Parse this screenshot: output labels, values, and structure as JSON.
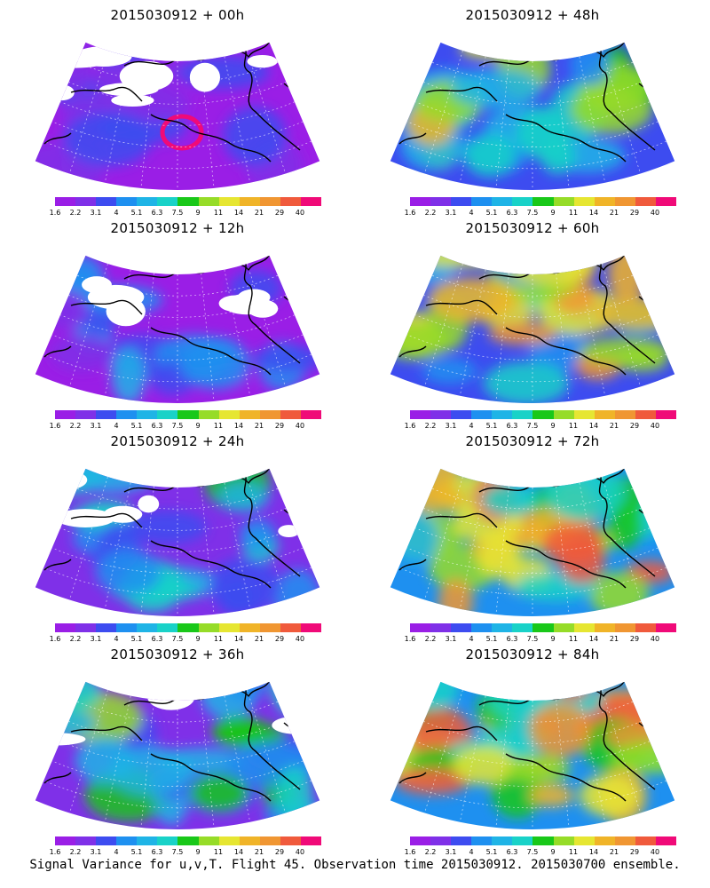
{
  "caption": "Signal Variance for u,v,T. Flight 45. Observation time 2015030912. 2015030700 ensemble.",
  "colorbar": {
    "ticks": [
      "1.6",
      "2.2",
      "3.1",
      "4",
      "5.1",
      "6.3",
      "7.5",
      "9",
      "11",
      "14",
      "21",
      "29",
      "40"
    ],
    "colors": [
      "#9a1ee6",
      "#7f30e8",
      "#3d4cf0",
      "#1e90f0",
      "#1fb4e6",
      "#19d2c8",
      "#19c819",
      "#96dc28",
      "#e6e632",
      "#f0b428",
      "#f09632",
      "#f05a3c",
      "#f00a78"
    ]
  },
  "panels": [
    {
      "title": "2015030912 + 00h",
      "lead_hours": 0
    },
    {
      "title": "2015030912 + 48h",
      "lead_hours": 48
    },
    {
      "title": "2015030912 + 12h",
      "lead_hours": 12
    },
    {
      "title": "2015030912 + 60h",
      "lead_hours": 60
    },
    {
      "title": "2015030912 + 24h",
      "lead_hours": 24
    },
    {
      "title": "2015030912 + 72h",
      "lead_hours": 72
    },
    {
      "title": "2015030912 + 36h",
      "lead_hours": 36
    },
    {
      "title": "2015030912 + 84h",
      "lead_hours": 84
    }
  ]
}
